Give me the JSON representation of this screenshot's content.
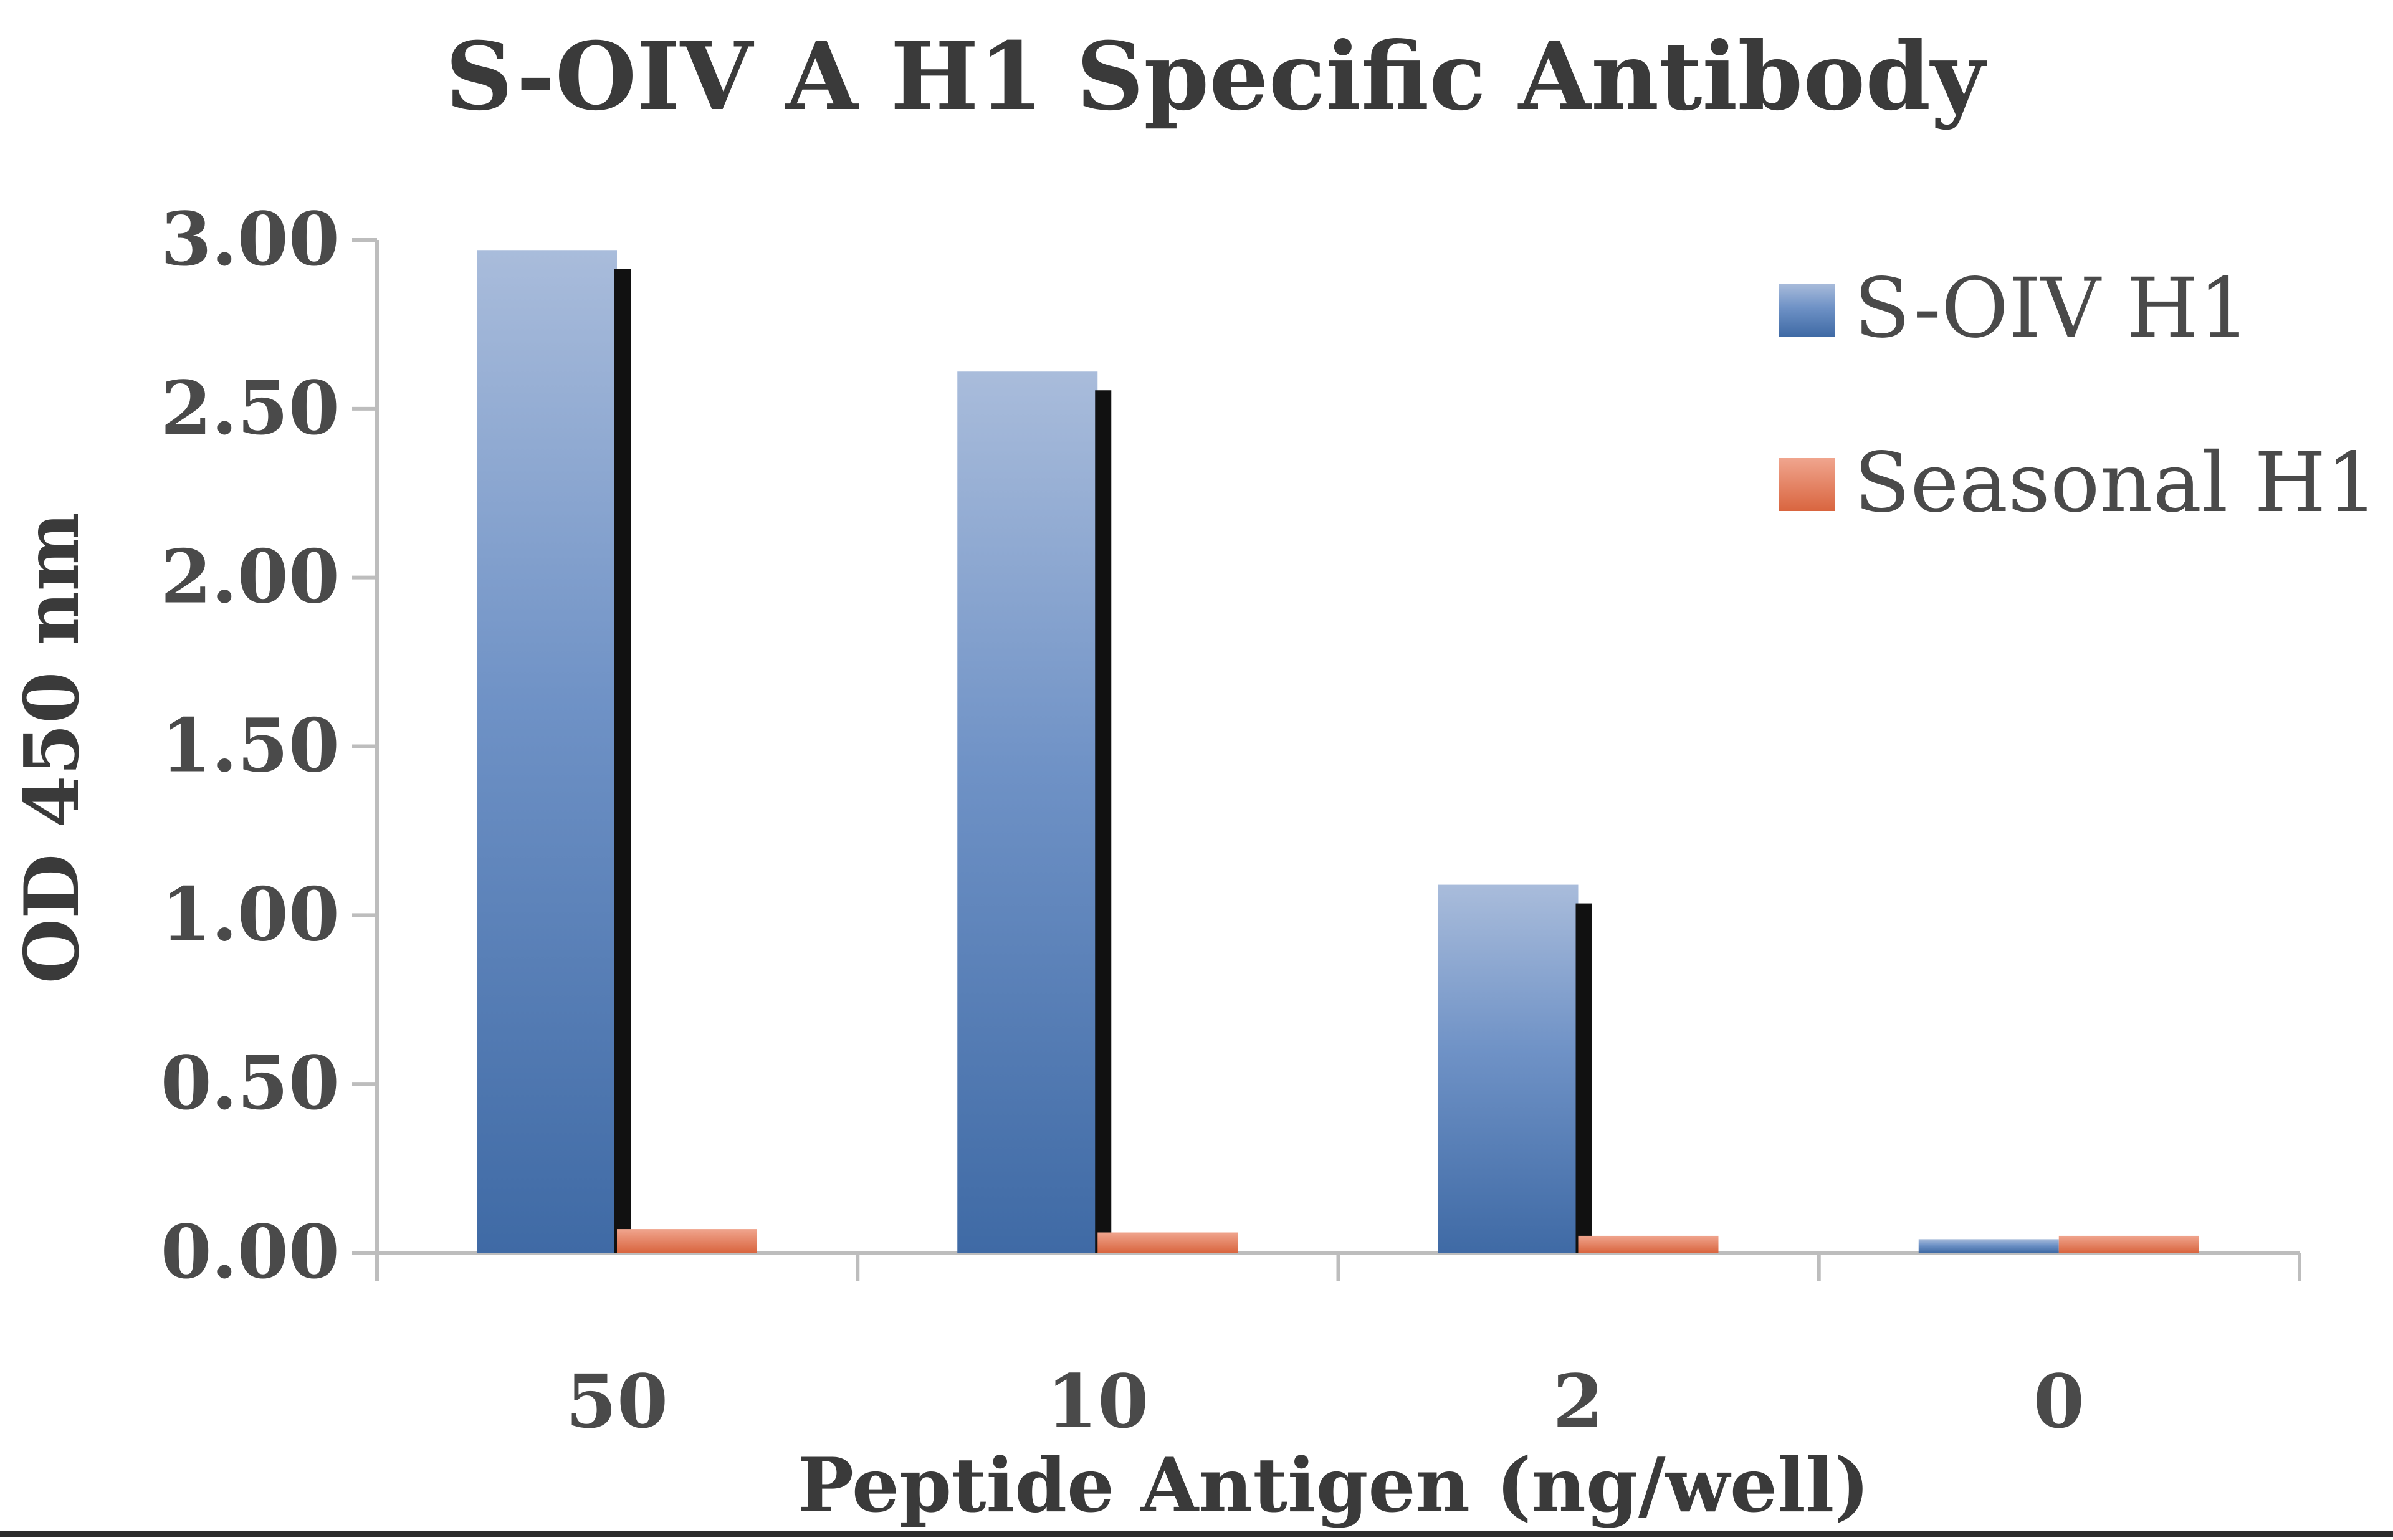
{
  "chart_data": {
    "type": "bar",
    "title": "S-OIV A H1 Specific Antibody",
    "xlabel": "Peptide Antigen (ng/well)",
    "ylabel": "OD 450 nm",
    "categories": [
      "50",
      "10",
      "2",
      "0"
    ],
    "ylim": [
      0,
      3.0
    ],
    "yticks": [
      "0.00",
      "0.50",
      "1.00",
      "1.50",
      "2.00",
      "2.50",
      "3.00"
    ],
    "series": [
      {
        "name": "S-OIV H1",
        "values": [
          2.97,
          2.61,
          1.09,
          0.04
        ],
        "color": "#4f7db8"
      },
      {
        "name": "Seasonal H1",
        "values": [
          0.07,
          0.06,
          0.05,
          0.05
        ],
        "color": "#e07a5f"
      }
    ],
    "legend": "top-right",
    "grid": false
  }
}
